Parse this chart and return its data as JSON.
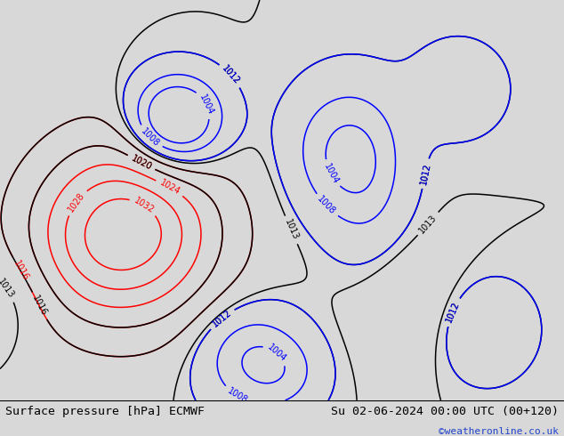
{
  "title_left": "Surface pressure [hPa] ECMWF",
  "title_right": "Su 02-06-2024 00:00 UTC (00+120)",
  "copyright": "©weatheronline.co.uk",
  "bg_color": "#d8d8d8",
  "land_color": "#b8b8b8",
  "sea_color": "#d8d8d8",
  "green_land_color": "#c8e6a0",
  "border_color": "#888888",
  "bottom_bar_color": "#f0f0f0",
  "bottom_bar_height": 0.082,
  "fig_width": 6.34,
  "fig_height": 4.9,
  "title_fontsize": 9.5,
  "copyright_color": "#2244cc",
  "copyright_fontsize": 8,
  "xlim": [
    -30,
    50
  ],
  "ylim": [
    30,
    75
  ],
  "contour_levels_red": [
    1016,
    1020,
    1024,
    1028,
    1032
  ],
  "contour_levels_black": [
    1012,
    1013,
    1016,
    1020
  ],
  "contour_levels_blue": [
    1004,
    1008,
    1012
  ],
  "label_fontsize": 7
}
